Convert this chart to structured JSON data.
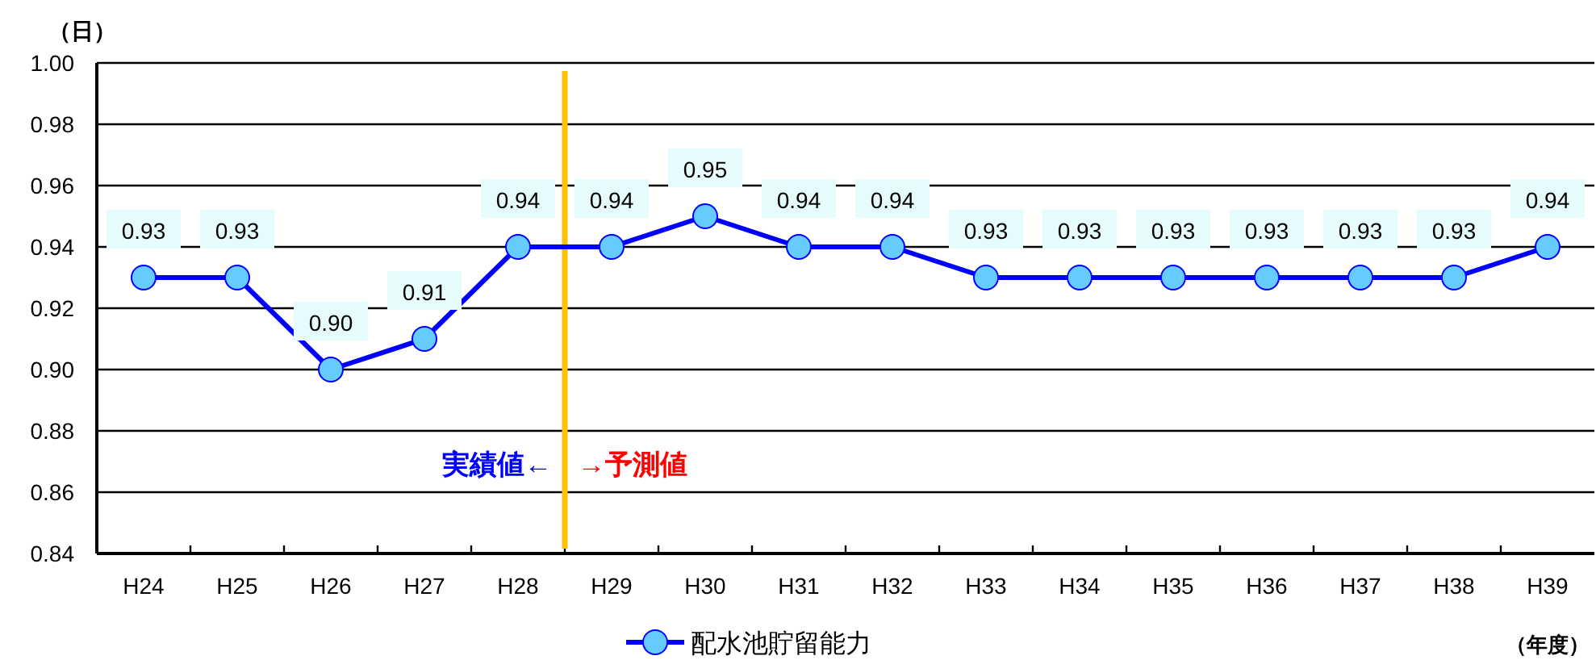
{
  "chart_data": {
    "type": "line",
    "ylabel": "（日）",
    "xlabel": "（年度）",
    "categories": [
      "H24",
      "H25",
      "H26",
      "H27",
      "H28",
      "H29",
      "H30",
      "H31",
      "H32",
      "H33",
      "H34",
      "H35",
      "H36",
      "H37",
      "H38",
      "H39"
    ],
    "series": [
      {
        "name": "配水池貯留能力",
        "color": "#0000ff",
        "values": [
          0.93,
          0.93,
          0.9,
          0.91,
          0.94,
          0.94,
          0.95,
          0.94,
          0.94,
          0.93,
          0.93,
          0.93,
          0.93,
          0.93,
          0.93,
          0.94
        ]
      }
    ],
    "ylim": [
      0.84,
      1.0
    ],
    "yticks": [
      {
        "value": 0.84,
        "label": "0.84"
      },
      {
        "value": 0.86,
        "label": "0.86"
      },
      {
        "value": 0.88,
        "label": "0.88"
      },
      {
        "value": 0.9,
        "label": "0.90"
      },
      {
        "value": 0.92,
        "label": "0.92"
      },
      {
        "value": 0.94,
        "label": "0.94"
      },
      {
        "value": 0.96,
        "label": "0.96"
      },
      {
        "value": 0.98,
        "label": "0.98"
      },
      {
        "value": 1.0,
        "label": "1.00"
      }
    ],
    "value_labels": [
      "0.93",
      "0.93",
      "0.90",
      "0.91",
      "0.94",
      "0.94",
      "0.95",
      "0.94",
      "0.94",
      "0.93",
      "0.93",
      "0.93",
      "0.93",
      "0.93",
      "0.93",
      "0.94"
    ],
    "annotations": [
      "実績値←",
      "→予測値"
    ],
    "grid": "y",
    "legend": "bottom",
    "marker": "circle",
    "line_style": "solid"
  }
}
